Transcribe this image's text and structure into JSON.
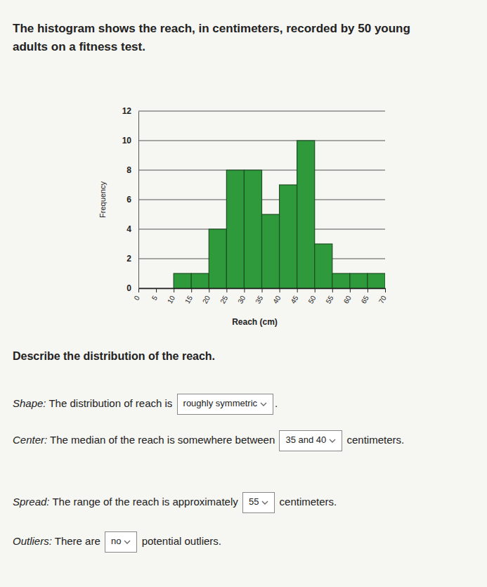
{
  "header": {
    "title": "The histogram shows the reach, in centimeters, recorded by 50 young adults on a fitness test."
  },
  "chart_data": {
    "type": "histogram",
    "x_label": "Reach (cm)",
    "y_label": "Frequency",
    "bins": [
      0,
      5,
      10,
      15,
      20,
      25,
      30,
      35,
      40,
      45,
      50,
      55,
      60,
      65,
      70
    ],
    "values": [
      0,
      0,
      1,
      1,
      4,
      8,
      8,
      5,
      7,
      10,
      3,
      1,
      1,
      1
    ],
    "color": "#2f9a3c",
    "xlim": [
      0,
      70
    ],
    "ylim": [
      0,
      12
    ],
    "xticks": [
      0,
      5,
      10,
      15,
      20,
      25,
      30,
      35,
      40,
      45,
      50,
      55,
      60,
      65,
      70
    ],
    "yticks": [
      0,
      2,
      4,
      6,
      8,
      10,
      12
    ],
    "grid": true
  },
  "prompt": "Describe the distribution of the reach.",
  "questions": [
    {
      "label": "Shape:",
      "before": "The distribution of reach is",
      "answer": "roughly symmetric",
      "after": "."
    },
    {
      "label": "Center:",
      "before": "The median of the reach is somewhere between",
      "answer": "35 and 40",
      "after": "centimeters."
    },
    {
      "label": "Spread:",
      "before": "The range of the reach is approximately",
      "answer": "55",
      "after": "centimeters."
    },
    {
      "label": "Outliers:",
      "before": "There are",
      "answer": "no",
      "after": "potential outliers."
    }
  ]
}
